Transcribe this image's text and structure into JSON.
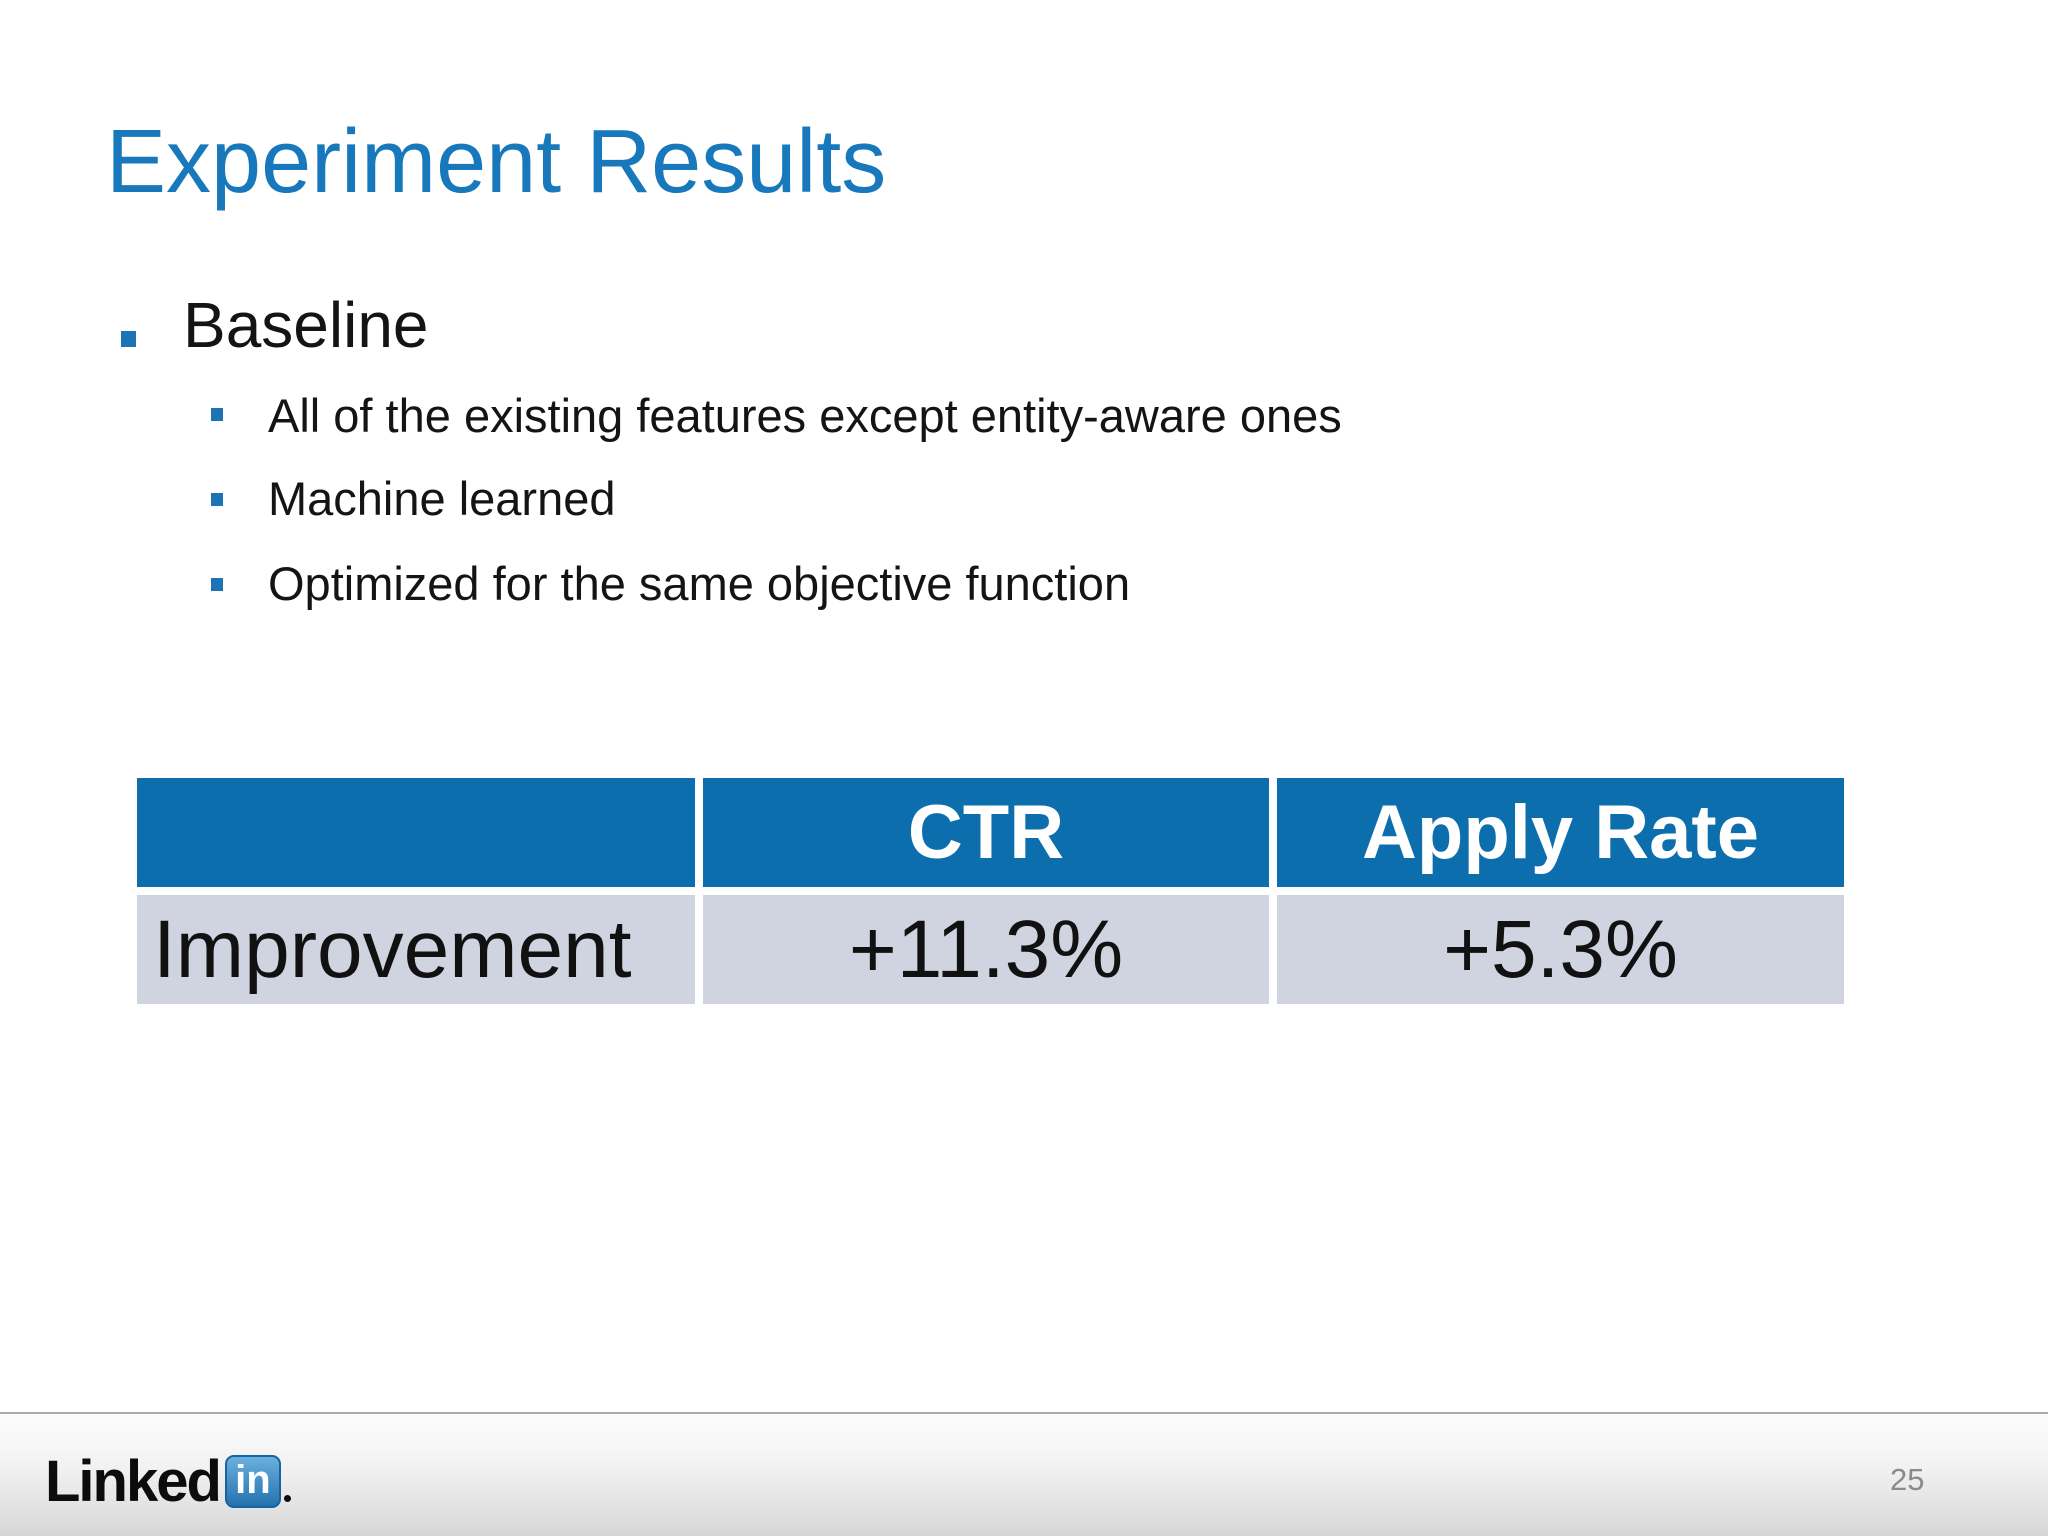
{
  "slide": {
    "title": "Experiment Results",
    "bullet": "Baseline",
    "sub_bullets": [
      "All of the existing features except entity-aware ones",
      "Machine learned",
      "Optimized for the same objective function"
    ]
  },
  "table": {
    "headers": [
      "",
      "CTR",
      "Apply Rate"
    ],
    "rows": [
      [
        "Improvement",
        "+11.3%",
        "+5.3%"
      ]
    ]
  },
  "footer": {
    "logo_text": "Linked",
    "logo_badge": "in",
    "page_number": "25"
  },
  "colors": {
    "title_blue": "#1878bc",
    "bullet_blue": "#1c74b4",
    "table_header_blue": "#0d6eae",
    "table_row_gray": "#cfd4e0",
    "page_number_gray": "#8a8a8a",
    "linkedin_badge_blue": "#2472ae"
  }
}
